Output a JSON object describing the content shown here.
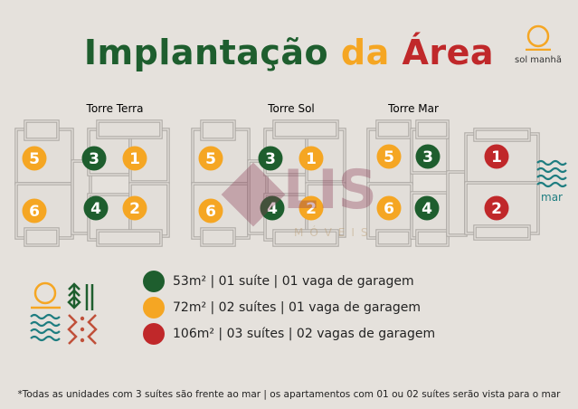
{
  "title": {
    "part1": "Implantação",
    "part2": "da",
    "part3": "Área"
  },
  "sun": {
    "label": "sol manhã",
    "icon": "sun-icon"
  },
  "towers": [
    {
      "name": "Torre Terra",
      "color": "#c0503a"
    },
    {
      "name": "Torre Sol",
      "color": "#f5a623"
    },
    {
      "name": "Torre Mar",
      "color": "#1e7d80"
    }
  ],
  "units": {
    "terra": [
      "5",
      "3",
      "1",
      "6",
      "4",
      "2"
    ],
    "sol": [
      "5",
      "3",
      "1",
      "6",
      "4",
      "2"
    ],
    "mar": [
      "5",
      "3",
      "1",
      "6",
      "4",
      "2"
    ]
  },
  "sea": {
    "label": "mar",
    "icon": "waves-icon"
  },
  "legend": [
    {
      "color": "#1e5e2e",
      "text": "53m² | 01 suíte | 01 vaga de garagem"
    },
    {
      "color": "#f5a623",
      "text": "72m² | 02 suítes | 01 vaga de garagem"
    },
    {
      "color": "#c0282a",
      "text": "106m² | 03 suítes | 02 vagas de garagem"
    }
  ],
  "watermark": {
    "text": "LIS",
    "subtext": "MÓVEIS"
  },
  "colors": {
    "green": "#1e5e2e",
    "orange": "#f5a623",
    "red": "#c0282a",
    "teal": "#1e7d80",
    "background": "#e5e1dc"
  },
  "footnote": "*Todas as unidades com 3 suítes são frente ao mar | os apartamentos com 01 ou 02 suítes serão vista para o mar"
}
